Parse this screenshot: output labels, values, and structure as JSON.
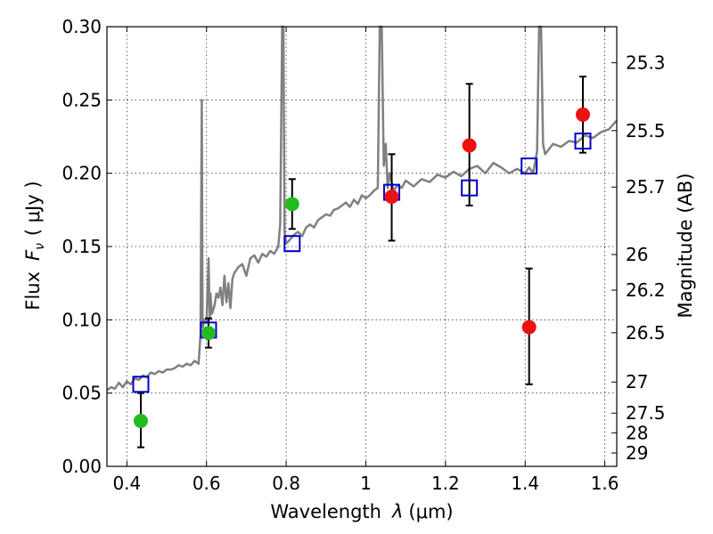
{
  "chart_data": {
    "type": "scatter",
    "xlabel_prefix": "Wavelength",
    "xlabel_symbol": "λ",
    "xlabel_unit": "(μm)",
    "ylabel_prefix": "Flux",
    "ylabel_symbol": "F",
    "ylabel_subscript": "ν",
    "ylabel_unit": "( μJy )",
    "y2label": "Magnitude (AB)",
    "xlim": [
      0.35,
      1.63
    ],
    "ylim": [
      0.0,
      0.3
    ],
    "grid": true,
    "x_ticks": [
      0.4,
      0.6,
      0.8,
      1.0,
      1.2,
      1.4,
      1.6
    ],
    "x_tick_labels": [
      "0.4",
      "0.6",
      "0.8",
      "1",
      "1.2",
      "1.4",
      "1.6"
    ],
    "y_ticks": [
      0.0,
      0.05,
      0.1,
      0.15,
      0.2,
      0.25,
      0.3
    ],
    "y_tick_labels": [
      "0.00",
      "0.05",
      "0.10",
      "0.15",
      "0.20",
      "0.25",
      "0.30"
    ],
    "mag_ticks": [
      {
        "mag": 25.3,
        "label": "25.3"
      },
      {
        "mag": 25.5,
        "label": "25.5"
      },
      {
        "mag": 25.7,
        "label": "25.7"
      },
      {
        "mag": 26.0,
        "label": "26"
      },
      {
        "mag": 26.2,
        "label": "26.2"
      },
      {
        "mag": 26.5,
        "label": "26.5"
      },
      {
        "mag": 27.0,
        "label": "27"
      },
      {
        "mag": 27.5,
        "label": "27.5"
      },
      {
        "mag": 28.0,
        "label": "28"
      },
      {
        "mag": 29.0,
        "label": "29"
      }
    ],
    "spectrum": {
      "name": "model-spectrum",
      "color": "#808080",
      "x": [
        0.35,
        0.36,
        0.37,
        0.38,
        0.39,
        0.4,
        0.41,
        0.42,
        0.43,
        0.44,
        0.45,
        0.46,
        0.47,
        0.48,
        0.49,
        0.5,
        0.51,
        0.52,
        0.53,
        0.54,
        0.55,
        0.56,
        0.57,
        0.58,
        0.585,
        0.588,
        0.59,
        0.592,
        0.595,
        0.6,
        0.605,
        0.608,
        0.61,
        0.613,
        0.615,
        0.62,
        0.625,
        0.63,
        0.635,
        0.64,
        0.645,
        0.65,
        0.655,
        0.66,
        0.665,
        0.67,
        0.68,
        0.69,
        0.7,
        0.71,
        0.72,
        0.73,
        0.74,
        0.75,
        0.76,
        0.77,
        0.78,
        0.785,
        0.79,
        0.793,
        0.796,
        0.8,
        0.81,
        0.82,
        0.83,
        0.84,
        0.85,
        0.86,
        0.87,
        0.88,
        0.89,
        0.9,
        0.91,
        0.92,
        0.93,
        0.94,
        0.95,
        0.96,
        0.97,
        0.98,
        0.99,
        1.0,
        1.01,
        1.02,
        1.03,
        1.035,
        1.04,
        1.045,
        1.05,
        1.055,
        1.06,
        1.07,
        1.08,
        1.09,
        1.1,
        1.12,
        1.14,
        1.16,
        1.18,
        1.2,
        1.22,
        1.24,
        1.26,
        1.28,
        1.3,
        1.32,
        1.34,
        1.36,
        1.38,
        1.4,
        1.41,
        1.42,
        1.43,
        1.435,
        1.44,
        1.445,
        1.45,
        1.47,
        1.49,
        1.51,
        1.53,
        1.55,
        1.57,
        1.59,
        1.61,
        1.63
      ],
      "y": [
        0.052,
        0.054,
        0.053,
        0.057,
        0.054,
        0.058,
        0.056,
        0.06,
        0.059,
        0.062,
        0.061,
        0.064,
        0.063,
        0.065,
        0.064,
        0.066,
        0.066,
        0.067,
        0.069,
        0.068,
        0.07,
        0.069,
        0.072,
        0.07,
        0.09,
        0.25,
        0.095,
        0.096,
        0.1,
        0.098,
        0.142,
        0.1,
        0.118,
        0.104,
        0.105,
        0.11,
        0.118,
        0.115,
        0.122,
        0.11,
        0.13,
        0.112,
        0.125,
        0.108,
        0.128,
        0.132,
        0.136,
        0.138,
        0.13,
        0.142,
        0.144,
        0.139,
        0.145,
        0.143,
        0.147,
        0.145,
        0.15,
        0.165,
        0.3,
        0.3,
        0.16,
        0.152,
        0.155,
        0.158,
        0.16,
        0.157,
        0.163,
        0.165,
        0.163,
        0.168,
        0.17,
        0.172,
        0.171,
        0.175,
        0.176,
        0.178,
        0.18,
        0.177,
        0.182,
        0.179,
        0.185,
        0.183,
        0.185,
        0.188,
        0.19,
        0.3,
        0.3,
        0.205,
        0.22,
        0.19,
        0.2,
        0.188,
        0.192,
        0.19,
        0.195,
        0.191,
        0.196,
        0.194,
        0.199,
        0.197,
        0.201,
        0.198,
        0.203,
        0.205,
        0.2,
        0.207,
        0.204,
        0.2,
        0.203,
        0.2,
        0.204,
        0.2,
        0.215,
        0.3,
        0.3,
        0.22,
        0.213,
        0.22,
        0.218,
        0.222,
        0.221,
        0.226,
        0.224,
        0.228,
        0.23,
        0.236
      ]
    },
    "blue_squares": {
      "name": "model-photometry",
      "color": "#0000cc",
      "x": [
        0.435,
        0.605,
        0.815,
        1.065,
        1.26,
        1.41,
        1.545
      ],
      "y": [
        0.056,
        0.093,
        0.152,
        0.187,
        0.19,
        0.205,
        0.222
      ]
    },
    "green_points": {
      "name": "observed-green",
      "color": "#22bb22",
      "x": [
        0.435,
        0.605,
        0.815
      ],
      "y": [
        0.031,
        0.091,
        0.179
      ],
      "yerr_low": [
        0.013,
        0.081,
        0.162
      ],
      "yerr_high": [
        0.05,
        0.101,
        0.196
      ]
    },
    "red_points": {
      "name": "observed-red",
      "color": "#ee1111",
      "x": [
        1.065,
        1.26,
        1.41,
        1.545
      ],
      "y": [
        0.184,
        0.219,
        0.095,
        0.24
      ],
      "yerr_low": [
        0.154,
        0.178,
        0.056,
        0.214
      ],
      "yerr_high": [
        0.213,
        0.261,
        0.135,
        0.266
      ]
    }
  }
}
